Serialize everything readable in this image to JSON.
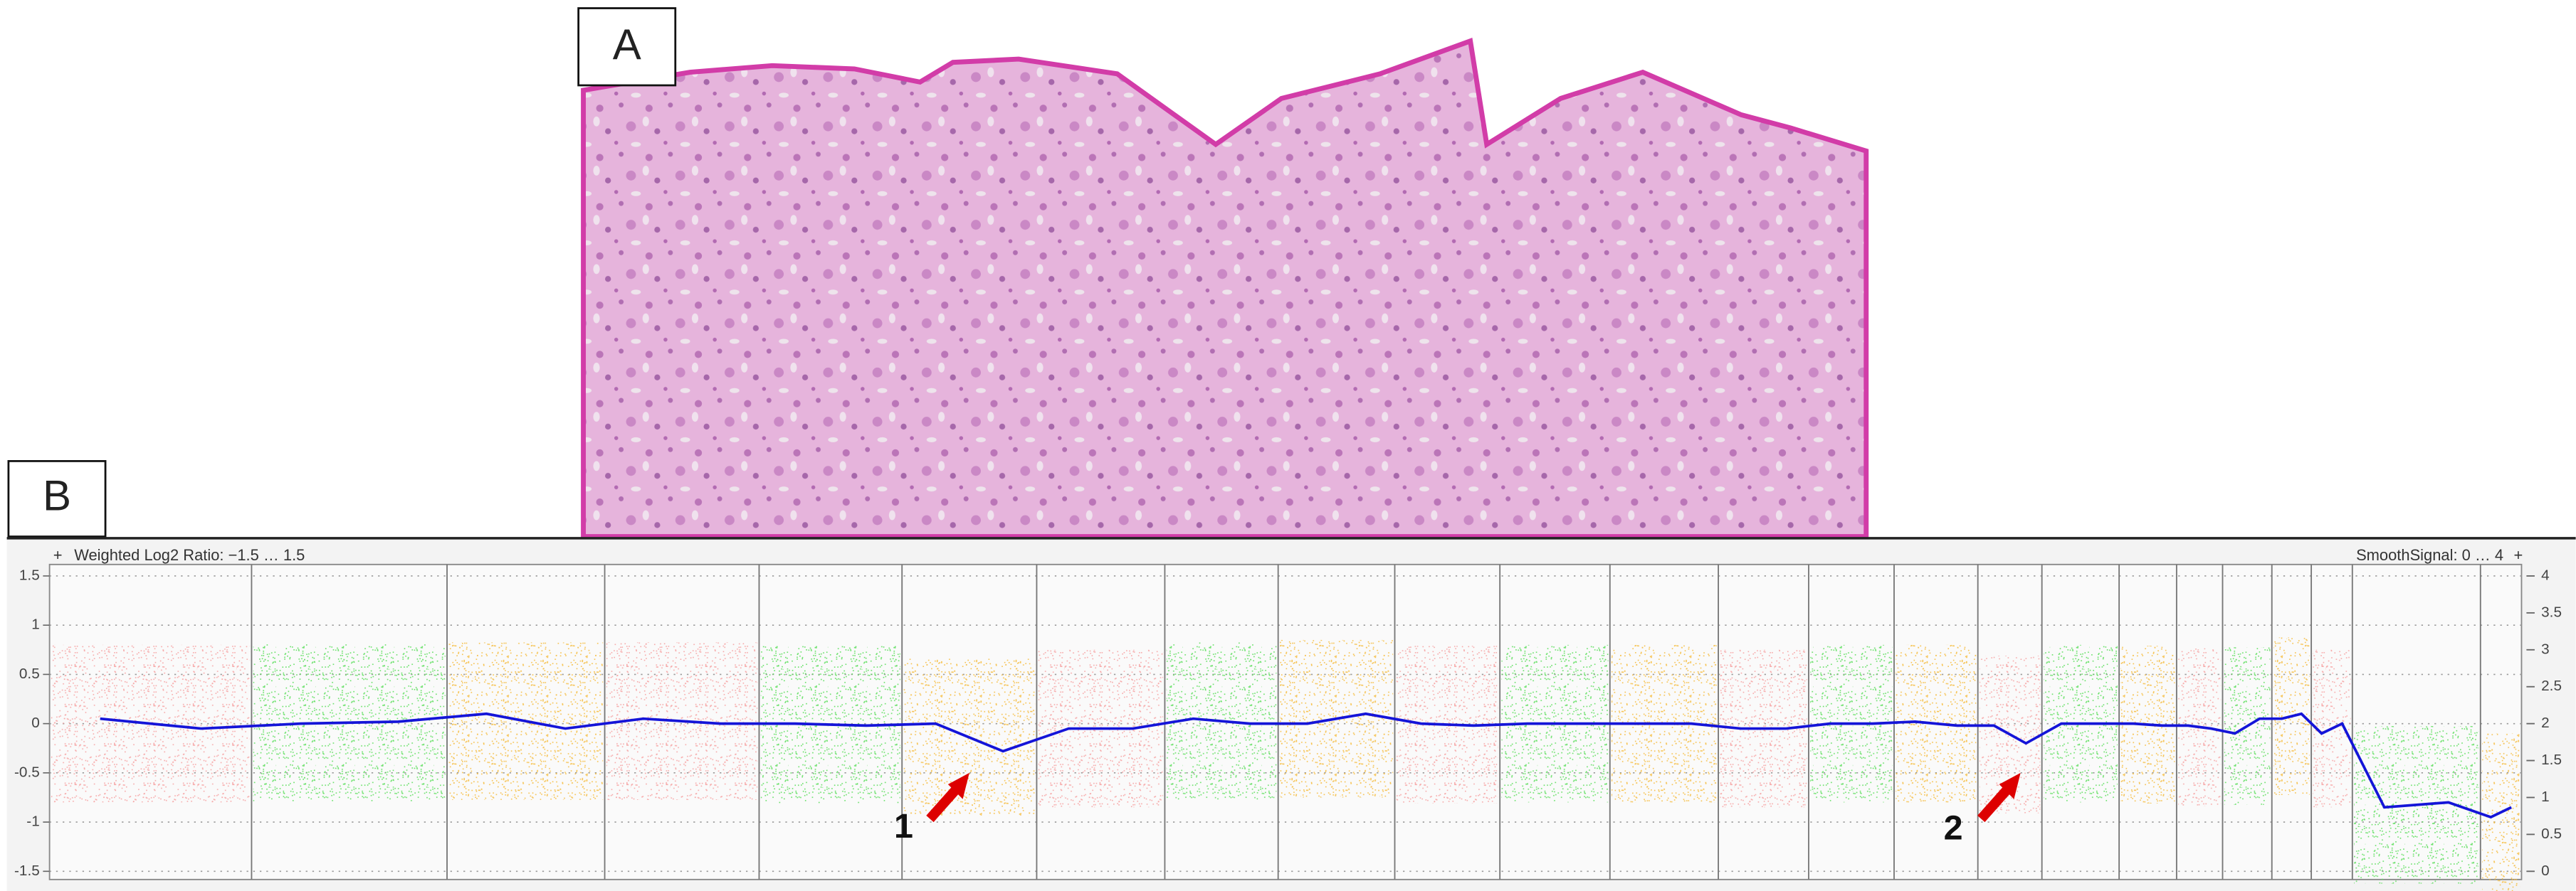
{
  "panel_a_label": "A",
  "panel_b_label": "B",
  "chart_data": {
    "type": "line",
    "left_toggle": "+",
    "right_toggle": "+",
    "left_axis_title": "Weighted Log2 Ratio: −1.5 … 1.5",
    "right_axis_title": "SmoothSignal: 0 … 4",
    "ylim": [
      -1.5,
      1.5
    ],
    "yticks": [
      1.5,
      1,
      0.5,
      0,
      -0.5,
      -1,
      -1.5
    ],
    "y2lim": [
      0,
      4
    ],
    "y2ticks": [
      4,
      3.5,
      3,
      2.5,
      2,
      1.5,
      1,
      0.5,
      0
    ],
    "grid": true,
    "color": "#1414d8",
    "values": [
      0.05,
      -0.05,
      0.0,
      0.02,
      0.1,
      -0.05,
      0.05,
      0.0,
      0.0,
      -0.02,
      0.0,
      -0.28,
      -0.05,
      -0.05,
      0.05,
      0.0,
      0.0,
      0.1,
      0.0,
      -0.02,
      0.0,
      0.0,
      0.0,
      0.0,
      -0.05,
      -0.05,
      0.0,
      0.0,
      0.02,
      -0.02,
      -0.02,
      -0.2,
      0.0,
      0.0,
      0.0,
      -0.02,
      -0.02,
      -0.05,
      -0.1,
      0.05,
      0.05,
      0.1,
      -0.1,
      0.0,
      -0.85,
      -0.8,
      -0.95,
      -0.85
    ],
    "annotations": [
      "1",
      "2"
    ]
  }
}
